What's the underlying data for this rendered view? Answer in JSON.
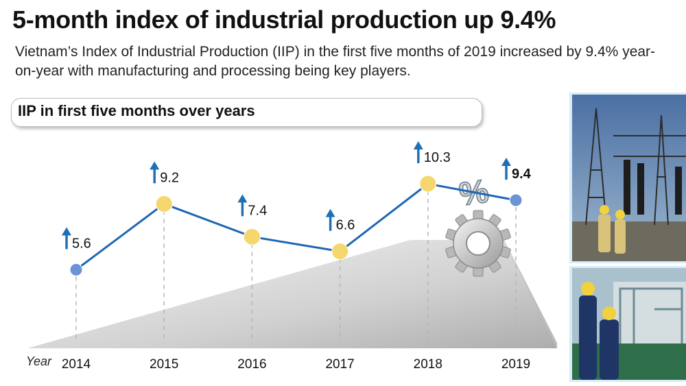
{
  "header": {
    "title": "5-month index of industrial production up 9.4%",
    "subtitle": "Vietnam’s Index of Industrial Production (IIP) in the first five months of 2019 increased by 9.4% year-on-year with manufacturing and processing being key players."
  },
  "section_label": "IIP in first five months over years",
  "colors": {
    "line": "#1e66b3",
    "point_yellow": "#f5d76e",
    "point_blue": "#6b93d6",
    "arrow": "#1e6fb5",
    "grid": "#b5b5b5"
  },
  "chart_data": {
    "type": "line",
    "title": "IIP in first five months over years",
    "xlabel": "Year",
    "categories": [
      "2014",
      "2015",
      "2016",
      "2017",
      "2018",
      "2019"
    ],
    "values": [
      5.6,
      9.2,
      7.4,
      6.6,
      10.3,
      9.4
    ],
    "data_labels": [
      "5.6",
      "9.2",
      "7.4",
      "6.6",
      "10.3",
      "9.4"
    ],
    "highlight": "2019",
    "grid": "vertical dashed lines per year",
    "ylim": [
      4,
      11.5
    ]
  },
  "icons": [
    "up-arrow-icon",
    "gear-percent-icon"
  ],
  "photos": [
    "power-substation-photo",
    "factory-workers-photo"
  ]
}
